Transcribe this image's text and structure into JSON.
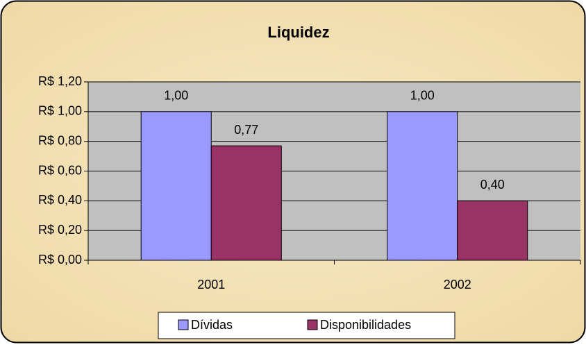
{
  "chart_data": {
    "type": "bar",
    "title": "Liquidez",
    "categories": [
      "2001",
      "2002"
    ],
    "series": [
      {
        "name": "Dívidas",
        "color": "#9999ff",
        "values": [
          1.0,
          1.0
        ],
        "value_labels": [
          "1,00",
          "1,00"
        ]
      },
      {
        "name": "Disponibilidades",
        "color": "#993366",
        "values": [
          0.77,
          0.4
        ],
        "value_labels": [
          "0,77",
          "0,40"
        ]
      }
    ],
    "ylim": [
      0,
      1.2
    ],
    "yticks": [
      {
        "value": 0,
        "label": "R$ 0,00"
      },
      {
        "value": 0.2,
        "label": "R$ 0,20"
      },
      {
        "value": 0.4,
        "label": "R$ 0,40"
      },
      {
        "value": 0.6,
        "label": "R$ 0,60"
      },
      {
        "value": 0.8,
        "label": "R$ 0,80"
      },
      {
        "value": 1.0,
        "label": "R$ 1,00"
      },
      {
        "value": 1.2,
        "label": "R$ 1,20"
      }
    ],
    "grid": true,
    "legend": "bottom"
  }
}
